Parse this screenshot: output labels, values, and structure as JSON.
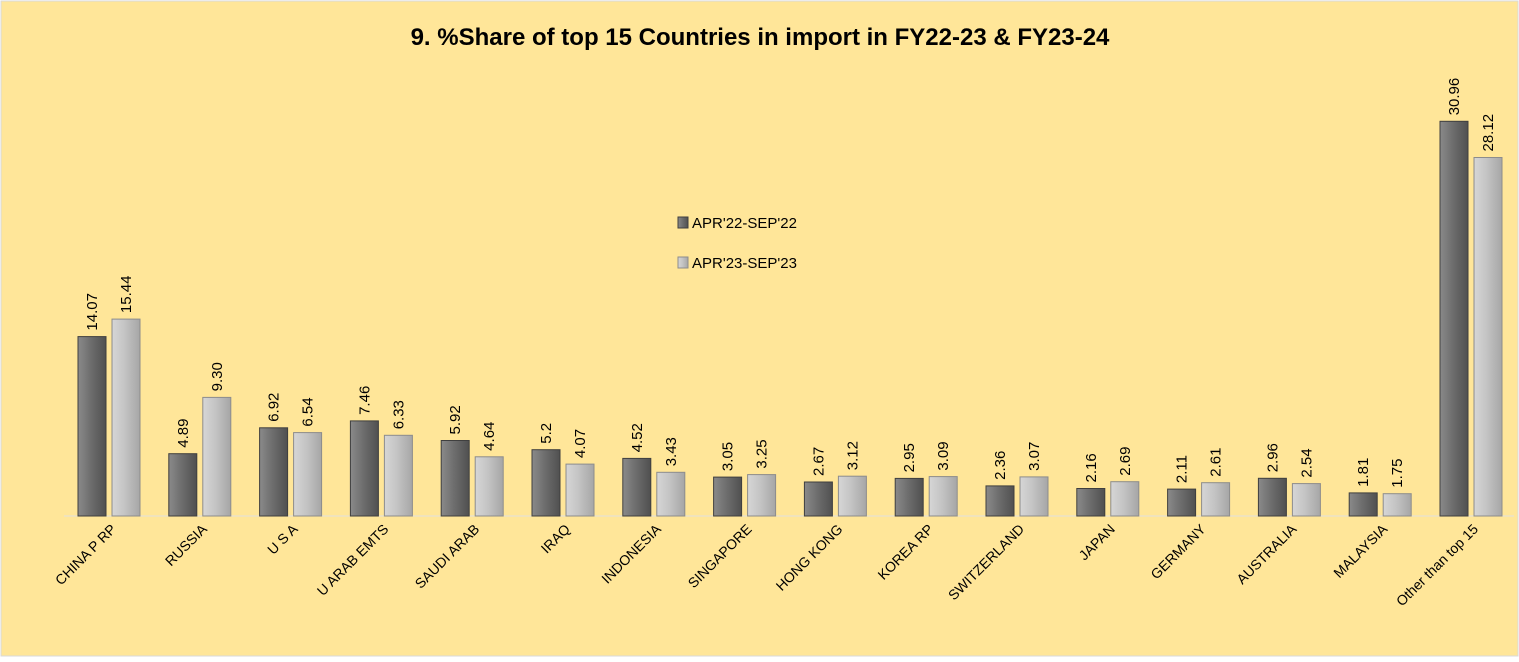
{
  "chart_data": {
    "type": "bar",
    "title": "9. %Share of top 15 Countries in import in FY22-23 & FY23-24",
    "xlabel": "",
    "ylabel": "",
    "ylim": [
      0,
      33
    ],
    "grid": false,
    "legend_position": "center",
    "categories": [
      "CHINA P RP",
      "RUSSIA",
      "U S A",
      "U ARAB EMTS",
      "SAUDI ARAB",
      "IRAQ",
      "INDONESIA",
      "SINGAPORE",
      "HONG KONG",
      "KOREA RP",
      "SWITZERLAND",
      "JAPAN",
      "GERMANY",
      "AUSTRALIA",
      "MALAYSIA",
      "Other than top 15"
    ],
    "series": [
      {
        "name": "APR'22-SEP'22",
        "color": "#6b6b6b",
        "values": [
          14.07,
          4.89,
          6.92,
          7.46,
          5.92,
          5.2,
          4.52,
          3.05,
          2.67,
          2.95,
          2.36,
          2.16,
          2.11,
          2.96,
          1.81,
          30.96
        ],
        "labels": [
          "14.07",
          "4.89",
          "6.92",
          "7.46",
          "5.92",
          "5.2",
          "4.52",
          "3.05",
          "2.67",
          "2.95",
          "2.36",
          "2.16",
          "2.11",
          "2.96",
          "1.81",
          "30.96"
        ]
      },
      {
        "name": "APR'23-SEP'23",
        "color": "#bdbdbd",
        "values": [
          15.44,
          9.3,
          6.54,
          6.33,
          4.64,
          4.07,
          3.43,
          3.25,
          3.12,
          3.09,
          3.07,
          2.69,
          2.61,
          2.54,
          1.75,
          28.12
        ],
        "labels": [
          "15.44",
          "9.30",
          "6.54",
          "6.33",
          "4.64",
          "4.07",
          "3.43",
          "3.25",
          "3.12",
          "3.09",
          "3.07",
          "2.69",
          "2.61",
          "2.54",
          "1.75",
          "28.12"
        ]
      }
    ]
  },
  "colors": {
    "background": "#ffe699",
    "frame": "#d9d9d9",
    "text": "#000000"
  }
}
